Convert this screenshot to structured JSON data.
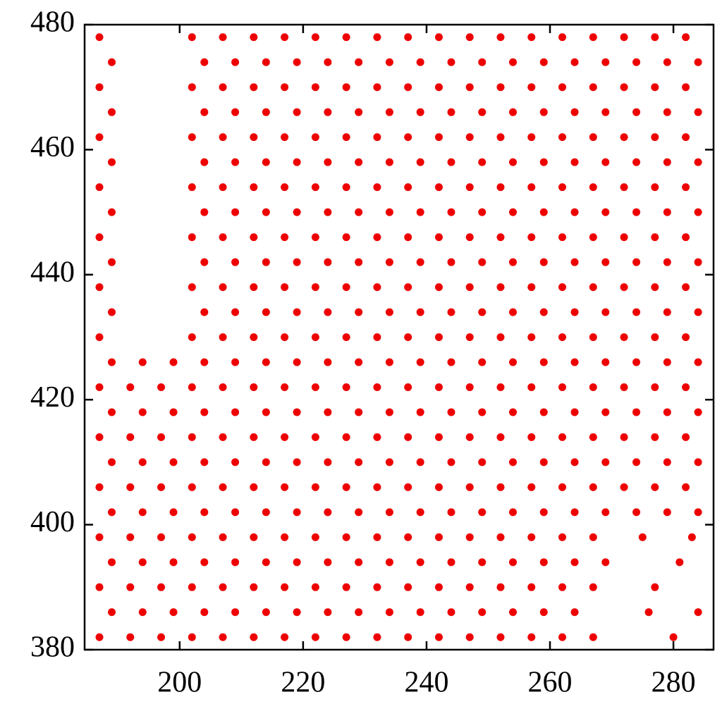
{
  "chart_data": {
    "type": "scatter",
    "color": "#ee0000",
    "xlim": [
      184.6,
      286.5
    ],
    "ylim": [
      380,
      480
    ],
    "xticks": [
      200,
      220,
      240,
      260,
      280
    ],
    "yticks": [
      380,
      400,
      420,
      440,
      460,
      480
    ],
    "x": [
      187,
      192,
      197,
      202,
      207,
      212,
      217,
      222,
      227,
      232,
      237,
      242,
      247,
      252,
      257,
      262,
      267,
      280,
      189,
      194,
      199,
      204,
      209,
      214,
      219,
      224,
      229,
      234,
      239,
      244,
      249,
      254,
      259,
      264,
      276,
      284,
      187,
      192,
      197,
      202,
      207,
      212,
      217,
      222,
      227,
      232,
      237,
      242,
      247,
      252,
      257,
      262,
      267,
      277,
      189,
      194,
      199,
      204,
      209,
      214,
      219,
      224,
      229,
      234,
      239,
      244,
      249,
      254,
      259,
      264,
      269,
      281,
      187,
      192,
      197,
      202,
      207,
      212,
      217,
      222,
      227,
      232,
      237,
      242,
      247,
      252,
      257,
      262,
      267,
      275,
      283,
      189,
      194,
      199,
      204,
      209,
      214,
      219,
      224,
      229,
      234,
      239,
      244,
      249,
      254,
      259,
      264,
      269,
      274,
      279,
      284,
      187,
      192,
      197,
      202,
      207,
      212,
      217,
      222,
      227,
      232,
      237,
      242,
      247,
      252,
      257,
      262,
      267,
      272,
      277,
      282,
      189,
      194,
      199,
      204,
      209,
      214,
      219,
      224,
      229,
      234,
      239,
      244,
      249,
      254,
      259,
      264,
      269,
      274,
      279,
      284,
      187,
      192,
      197,
      202,
      207,
      212,
      217,
      222,
      227,
      232,
      237,
      242,
      247,
      252,
      257,
      262,
      267,
      272,
      277,
      282,
      189,
      194,
      199,
      204,
      209,
      214,
      219,
      224,
      229,
      234,
      239,
      244,
      249,
      254,
      259,
      264,
      269,
      274,
      279,
      284,
      187,
      192,
      197,
      202,
      207,
      212,
      217,
      222,
      227,
      232,
      237,
      242,
      247,
      252,
      257,
      262,
      267,
      272,
      277,
      282,
      189,
      194,
      199,
      204,
      209,
      214,
      219,
      224,
      229,
      234,
      239,
      244,
      249,
      254,
      259,
      264,
      269,
      274,
      279,
      284,
      187,
      202,
      207,
      212,
      217,
      222,
      227,
      232,
      237,
      242,
      247,
      252,
      257,
      262,
      267,
      272,
      277,
      282,
      189,
      204,
      209,
      214,
      219,
      224,
      229,
      234,
      239,
      244,
      249,
      254,
      259,
      264,
      269,
      274,
      279,
      284,
      187,
      202,
      207,
      212,
      217,
      222,
      227,
      232,
      237,
      242,
      247,
      252,
      257,
      262,
      267,
      272,
      277,
      282,
      189,
      204,
      209,
      214,
      219,
      224,
      229,
      234,
      239,
      244,
      249,
      254,
      259,
      264,
      269,
      274,
      279,
      284,
      187,
      202,
      207,
      212,
      217,
      222,
      227,
      232,
      237,
      242,
      247,
      252,
      257,
      262,
      267,
      272,
      277,
      282,
      189,
      204,
      209,
      214,
      219,
      224,
      229,
      234,
      239,
      244,
      249,
      254,
      259,
      264,
      269,
      274,
      279,
      284,
      187,
      202,
      207,
      212,
      217,
      222,
      227,
      232,
      237,
      242,
      247,
      252,
      257,
      262,
      267,
      272,
      277,
      282,
      189,
      204,
      209,
      214,
      219,
      224,
      229,
      234,
      239,
      244,
      249,
      254,
      259,
      264,
      269,
      274,
      279,
      284,
      187,
      202,
      207,
      212,
      217,
      222,
      227,
      232,
      237,
      242,
      247,
      252,
      257,
      262,
      267,
      272,
      277,
      282,
      189,
      204,
      209,
      214,
      219,
      224,
      229,
      234,
      239,
      244,
      249,
      254,
      259,
      264,
      269,
      274,
      279,
      284,
      187,
      202,
      207,
      212,
      217,
      222,
      227,
      232,
      237,
      242,
      247,
      252,
      257,
      262,
      267,
      272,
      277,
      282,
      189,
      204,
      209,
      214,
      219,
      224,
      229,
      234,
      239,
      244,
      249,
      254,
      259,
      264,
      269,
      274,
      279,
      284,
      187,
      202,
      207,
      212,
      217,
      222,
      227,
      232,
      237,
      242,
      247,
      252,
      257,
      262,
      267,
      272,
      277,
      282
    ],
    "values": [
      382,
      382,
      382,
      382,
      382,
      382,
      382,
      382,
      382,
      382,
      382,
      382,
      382,
      382,
      382,
      382,
      382,
      382,
      386,
      386,
      386,
      386,
      386,
      386,
      386,
      386,
      386,
      386,
      386,
      386,
      386,
      386,
      386,
      386,
      386,
      386,
      390,
      390,
      390,
      390,
      390,
      390,
      390,
      390,
      390,
      390,
      390,
      390,
      390,
      390,
      390,
      390,
      390,
      390,
      394,
      394,
      394,
      394,
      394,
      394,
      394,
      394,
      394,
      394,
      394,
      394,
      394,
      394,
      394,
      394,
      394,
      394,
      398,
      398,
      398,
      398,
      398,
      398,
      398,
      398,
      398,
      398,
      398,
      398,
      398,
      398,
      398,
      398,
      398,
      398,
      398,
      402,
      402,
      402,
      402,
      402,
      402,
      402,
      402,
      402,
      402,
      402,
      402,
      402,
      402,
      402,
      402,
      402,
      402,
      402,
      402,
      406,
      406,
      406,
      406,
      406,
      406,
      406,
      406,
      406,
      406,
      406,
      406,
      406,
      406,
      406,
      406,
      406,
      406,
      406,
      406,
      410,
      410,
      410,
      410,
      410,
      410,
      410,
      410,
      410,
      410,
      410,
      410,
      410,
      410,
      410,
      410,
      410,
      410,
      410,
      410,
      414,
      414,
      414,
      414,
      414,
      414,
      414,
      414,
      414,
      414,
      414,
      414,
      414,
      414,
      414,
      414,
      414,
      414,
      414,
      414,
      418,
      418,
      418,
      418,
      418,
      418,
      418,
      418,
      418,
      418,
      418,
      418,
      418,
      418,
      418,
      418,
      418,
      418,
      418,
      418,
      422,
      422,
      422,
      422,
      422,
      422,
      422,
      422,
      422,
      422,
      422,
      422,
      422,
      422,
      422,
      422,
      422,
      422,
      422,
      422,
      426,
      426,
      426,
      426,
      426,
      426,
      426,
      426,
      426,
      426,
      426,
      426,
      426,
      426,
      426,
      426,
      426,
      426,
      426,
      426,
      430,
      430,
      430,
      430,
      430,
      430,
      430,
      430,
      430,
      430,
      430,
      430,
      430,
      430,
      430,
      430,
      430,
      430,
      434,
      434,
      434,
      434,
      434,
      434,
      434,
      434,
      434,
      434,
      434,
      434,
      434,
      434,
      434,
      434,
      434,
      434,
      438,
      438,
      438,
      438,
      438,
      438,
      438,
      438,
      438,
      438,
      438,
      438,
      438,
      438,
      438,
      438,
      438,
      438,
      442,
      442,
      442,
      442,
      442,
      442,
      442,
      442,
      442,
      442,
      442,
      442,
      442,
      442,
      442,
      442,
      442,
      442,
      446,
      446,
      446,
      446,
      446,
      446,
      446,
      446,
      446,
      446,
      446,
      446,
      446,
      446,
      446,
      446,
      446,
      446,
      450,
      450,
      450,
      450,
      450,
      450,
      450,
      450,
      450,
      450,
      450,
      450,
      450,
      450,
      450,
      450,
      450,
      450,
      454,
      454,
      454,
      454,
      454,
      454,
      454,
      454,
      454,
      454,
      454,
      454,
      454,
      454,
      454,
      454,
      454,
      454,
      458,
      458,
      458,
      458,
      458,
      458,
      458,
      458,
      458,
      458,
      458,
      458,
      458,
      458,
      458,
      458,
      458,
      458,
      462,
      462,
      462,
      462,
      462,
      462,
      462,
      462,
      462,
      462,
      462,
      462,
      462,
      462,
      462,
      462,
      462,
      462,
      466,
      466,
      466,
      466,
      466,
      466,
      466,
      466,
      466,
      466,
      466,
      466,
      466,
      466,
      466,
      466,
      466,
      466,
      470,
      470,
      470,
      470,
      470,
      470,
      470,
      470,
      470,
      470,
      470,
      470,
      470,
      470,
      470,
      470,
      470,
      470,
      474,
      474,
      474,
      474,
      474,
      474,
      474,
      474,
      474,
      474,
      474,
      474,
      474,
      474,
      474,
      474,
      474,
      474,
      478,
      478,
      478,
      478,
      478,
      478,
      478,
      478,
      478,
      478,
      478,
      478,
      478,
      478,
      478,
      478,
      478,
      478
    ]
  }
}
